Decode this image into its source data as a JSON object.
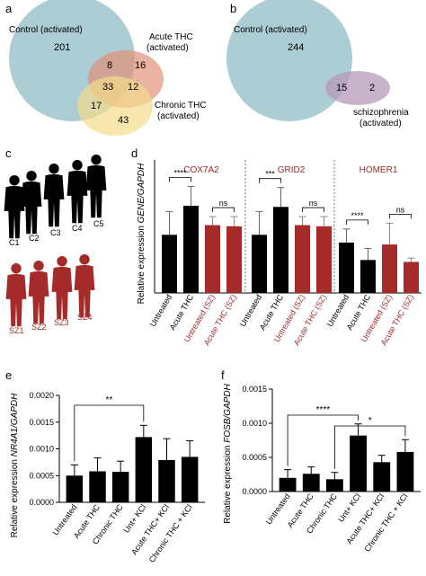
{
  "panels": {
    "a": {
      "letter": "a",
      "control_label": "Control (activated)",
      "acute_label": [
        "Acute THC",
        "(activated)"
      ],
      "chronic_label": [
        "Chronic THC",
        "(activated)"
      ],
      "counts": {
        "control_only": "201",
        "control_acute": "8",
        "acute_only": "16",
        "all_three": "33",
        "acute_chronic": "12",
        "control_chronic": "17",
        "chronic_only": "43"
      }
    },
    "b": {
      "letter": "b",
      "control_label": "Control (activated)",
      "sz_label": [
        "schizophrenia",
        "(activated)"
      ],
      "counts": {
        "control_only": "244",
        "overlap": "15",
        "sz_only": "2"
      }
    },
    "c": {
      "letter": "c",
      "controls": [
        "C1",
        "C2",
        "C3",
        "C4",
        "C5"
      ],
      "patients": [
        "SZ1",
        "SZ2",
        "SZ3",
        "SZ4"
      ]
    },
    "d": {
      "letter": "d",
      "ylabel_prefix": "Relative expression ",
      "ylabel_italic": "GENE/GAPDH",
      "genes": [
        "COX7A2",
        "GRID2",
        "HOMER1"
      ],
      "categories": [
        "Untreated",
        "Acute THC",
        "Untreated (SZ)",
        "Acute THC (SZ)"
      ],
      "sig": [
        [
          "****",
          "ns"
        ],
        [
          "***",
          "ns"
        ],
        [
          "****",
          "ns"
        ]
      ]
    },
    "e": {
      "letter": "e",
      "ylabel_prefix": "Relative expression ",
      "ylabel_italic": "NR4A1/GAPDH",
      "sig": [
        "**"
      ]
    },
    "f": {
      "letter": "f",
      "ylabel_prefix": "Relative expression ",
      "ylabel_italic": "FOSB/GAPDH",
      "sig": [
        "****",
        "*"
      ]
    }
  },
  "chart_data": [
    {
      "type": "bar",
      "panel": "d",
      "title": "COX7A2",
      "categories": [
        "Untreated",
        "Acute THC",
        "Untreated (SZ)",
        "Acute THC (SZ)"
      ],
      "values": [
        1.5,
        2.25,
        1.75,
        1.72
      ],
      "errors": [
        0.6,
        0.5,
        0.22,
        0.25
      ],
      "bar_colors": [
        "#000000",
        "#000000",
        "#a52a2a",
        "#a52a2a"
      ]
    },
    {
      "type": "bar",
      "panel": "d",
      "title": "GRID2",
      "categories": [
        "Untreated",
        "Acute THC",
        "Untreated (SZ)",
        "Acute THC (SZ)"
      ],
      "values": [
        1.5,
        2.22,
        1.75,
        1.72
      ],
      "errors": [
        0.6,
        0.5,
        0.22,
        0.25
      ],
      "bar_colors": [
        "#000000",
        "#000000",
        "#a52a2a",
        "#a52a2a"
      ]
    },
    {
      "type": "bar",
      "panel": "d",
      "title": "HOMER1",
      "categories": [
        "Untreated",
        "Acute THC",
        "Untreated (SZ)",
        "Acute THC (SZ)"
      ],
      "values": [
        1.3,
        0.85,
        1.25,
        0.8
      ],
      "errors": [
        0.35,
        0.3,
        0.55,
        0.1
      ],
      "bar_colors": [
        "#000000",
        "#000000",
        "#a52a2a",
        "#a52a2a"
      ]
    },
    {
      "type": "bar",
      "panel": "e",
      "title": "",
      "ylabel": "Relative expression NR4A1/GAPDH",
      "categories": [
        "Untreated",
        "Acute THC",
        "Chronic THC",
        "Unt+ KCl",
        "Acute THC+ KCl",
        "Chronic THC + KCl"
      ],
      "values": [
        0.0005,
        0.00058,
        0.00057,
        0.00122,
        0.00079,
        0.00085
      ],
      "errors": [
        0.0002,
        0.00025,
        0.0002,
        0.00022,
        0.0004,
        0.0003
      ],
      "ylim": [
        0,
        0.002
      ],
      "yticks": [
        "0.0000",
        "0.0005",
        "0.0010",
        "0.0015",
        "0.0020"
      ]
    },
    {
      "type": "bar",
      "panel": "f",
      "title": "",
      "ylabel": "Relative expression FOSB/GAPDH",
      "categories": [
        "Untreated",
        "Acute THC",
        "Chronic THC",
        "Unt+ KCl",
        "Acute THC+ KCl",
        "Chronic THC + KCl"
      ],
      "values": [
        0.0002,
        0.00026,
        0.00018,
        0.00082,
        0.00043,
        0.00058
      ],
      "errors": [
        0.00012,
        0.0001,
        0.0001,
        0.00017,
        0.0001,
        0.00018
      ],
      "ylim": [
        0,
        0.0015
      ],
      "yticks": [
        "0.0000",
        "0.0005",
        "0.0010",
        "0.0015"
      ]
    }
  ],
  "colors": {
    "bar_black": "#000000",
    "bar_red": "#a52a2a",
    "venn_control": "#8fbcc4",
    "venn_acute": "#e0927a",
    "venn_chronic": "#f3dc8c",
    "venn_sz": "#b59ab8",
    "silhouette_red": "#a52a2a"
  }
}
